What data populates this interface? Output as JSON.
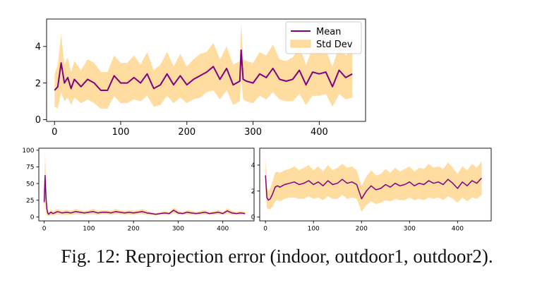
{
  "caption": "Fig. 12: Reprojection error (indoor, outdoor1, outdoor2).",
  "colors": {
    "mean": "#800080",
    "std": "#ffd080",
    "axis": "#000000"
  },
  "chart_data": [
    {
      "type": "line",
      "title": "",
      "xlabel": "",
      "ylabel": "",
      "xlim": [
        -12,
        470
      ],
      "ylim": [
        -0.1,
        5.5
      ],
      "xticks": [
        0,
        100,
        200,
        300,
        400
      ],
      "yticks": [
        0,
        2,
        4
      ],
      "legend": {
        "position": "top-right",
        "entries": [
          "Mean",
          "Std Dev"
        ]
      },
      "series": [
        {
          "name": "Mean",
          "x": [
            0,
            5,
            10,
            15,
            20,
            25,
            30,
            40,
            50,
            60,
            70,
            80,
            90,
            100,
            110,
            120,
            130,
            140,
            150,
            160,
            170,
            180,
            190,
            200,
            210,
            220,
            230,
            240,
            250,
            260,
            270,
            280,
            282,
            285,
            290,
            300,
            310,
            320,
            330,
            340,
            350,
            360,
            370,
            380,
            390,
            400,
            410,
            420,
            430,
            440,
            450
          ],
          "values": [
            1.6,
            1.8,
            3.1,
            2.0,
            2.3,
            1.7,
            2.2,
            1.8,
            2.2,
            2.0,
            1.6,
            1.6,
            2.4,
            2.0,
            2.0,
            2.3,
            2.0,
            2.5,
            1.7,
            1.9,
            2.5,
            1.9,
            2.4,
            1.9,
            2.2,
            2.4,
            2.6,
            2.9,
            2.2,
            2.8,
            1.9,
            2.1,
            3.8,
            2.2,
            2.1,
            2.0,
            2.5,
            2.3,
            2.8,
            2.2,
            2.1,
            2.2,
            2.7,
            1.9,
            2.6,
            2.5,
            2.6,
            1.8,
            2.7,
            2.3,
            2.5
          ]
        },
        {
          "name": "Std Dev",
          "x": [
            0,
            5,
            10,
            15,
            20,
            25,
            30,
            40,
            50,
            60,
            70,
            80,
            90,
            100,
            110,
            120,
            130,
            140,
            150,
            160,
            170,
            180,
            190,
            200,
            210,
            220,
            230,
            240,
            250,
            260,
            270,
            280,
            282,
            285,
            290,
            300,
            310,
            320,
            330,
            340,
            350,
            360,
            370,
            380,
            390,
            400,
            410,
            420,
            430,
            440,
            450
          ],
          "values": [
            0.9,
            1.2,
            1.6,
            1.0,
            1.1,
            0.9,
            1.0,
            0.9,
            1.1,
            1.1,
            1.0,
            1.0,
            1.1,
            1.1,
            1.1,
            1.2,
            1.0,
            1.2,
            1.0,
            1.1,
            1.2,
            1.0,
            1.2,
            1.0,
            1.1,
            1.2,
            1.1,
            1.3,
            1.1,
            1.2,
            1.1,
            1.1,
            1.5,
            1.1,
            1.1,
            1.1,
            1.2,
            1.2,
            1.3,
            1.1,
            1.1,
            1.2,
            1.3,
            1.1,
            1.3,
            1.2,
            1.2,
            1.1,
            1.3,
            1.2,
            1.3
          ]
        }
      ]
    },
    {
      "type": "line",
      "title": "",
      "xlabel": "",
      "ylabel": "",
      "xlim": [
        -12,
        470
      ],
      "ylim": [
        -6,
        103
      ],
      "xticks": [
        0,
        100,
        200,
        300,
        400
      ],
      "yticks": [
        0,
        25,
        50,
        75,
        100
      ],
      "series": [
        {
          "name": "Mean",
          "x": [
            0,
            2,
            4,
            6,
            8,
            10,
            15,
            20,
            30,
            40,
            50,
            60,
            70,
            80,
            90,
            100,
            110,
            120,
            130,
            140,
            150,
            160,
            170,
            180,
            190,
            200,
            210,
            220,
            230,
            240,
            250,
            260,
            270,
            280,
            290,
            300,
            310,
            320,
            330,
            340,
            350,
            360,
            370,
            380,
            390,
            400,
            410,
            420,
            430,
            440,
            450
          ],
          "values": [
            22,
            62,
            30,
            12,
            6,
            4,
            7,
            5,
            8,
            6,
            7,
            6,
            8,
            7,
            6,
            7,
            8,
            6,
            7,
            7,
            6,
            8,
            7,
            6,
            7,
            6,
            7,
            8,
            6,
            5,
            4,
            5,
            6,
            5,
            10,
            6,
            5,
            7,
            6,
            5,
            6,
            7,
            5,
            6,
            7,
            5,
            9,
            6,
            5,
            6,
            5
          ]
        },
        {
          "name": "Std Dev",
          "x": [
            0,
            2,
            4,
            6,
            8,
            10,
            15,
            20,
            30,
            40,
            50,
            60,
            70,
            80,
            90,
            100,
            110,
            120,
            130,
            140,
            150,
            160,
            170,
            180,
            190,
            200,
            210,
            220,
            230,
            240,
            250,
            260,
            270,
            280,
            290,
            300,
            310,
            320,
            330,
            340,
            350,
            360,
            370,
            380,
            390,
            400,
            410,
            420,
            430,
            440,
            450
          ],
          "values": [
            20,
            35,
            25,
            10,
            4,
            3,
            4,
            3,
            4,
            3,
            4,
            3,
            4,
            3,
            3,
            3,
            4,
            3,
            3,
            3,
            3,
            4,
            3,
            3,
            3,
            3,
            3,
            4,
            3,
            2,
            2,
            2,
            3,
            2,
            4,
            3,
            2,
            3,
            3,
            2,
            3,
            3,
            2,
            3,
            3,
            2,
            4,
            3,
            2,
            3,
            2
          ]
        }
      ]
    },
    {
      "type": "line",
      "title": "",
      "xlabel": "",
      "ylabel": "",
      "xlim": [
        -12,
        470
      ],
      "ylim": [
        -0.3,
        5.3
      ],
      "xticks": [
        0,
        100,
        200,
        300,
        400
      ],
      "yticks": [
        0,
        2,
        4
      ],
      "series": [
        {
          "name": "Mean",
          "x": [
            0,
            3,
            6,
            10,
            15,
            20,
            25,
            30,
            40,
            50,
            60,
            70,
            80,
            90,
            100,
            110,
            120,
            130,
            140,
            150,
            160,
            170,
            180,
            190,
            200,
            210,
            220,
            230,
            240,
            250,
            260,
            270,
            280,
            290,
            300,
            310,
            320,
            330,
            340,
            350,
            360,
            370,
            380,
            390,
            400,
            410,
            420,
            430,
            440,
            450
          ],
          "values": [
            3.2,
            1.5,
            1.3,
            1.4,
            1.8,
            2.3,
            2.4,
            2.3,
            2.5,
            2.6,
            2.7,
            2.5,
            2.6,
            2.8,
            2.5,
            2.7,
            2.4,
            2.8,
            2.5,
            2.6,
            2.9,
            2.6,
            2.7,
            2.5,
            1.4,
            2.0,
            2.4,
            2.1,
            2.2,
            2.5,
            2.3,
            2.6,
            2.4,
            2.5,
            2.7,
            2.4,
            2.6,
            2.5,
            2.8,
            2.6,
            2.7,
            2.5,
            2.9,
            2.6,
            2.2,
            2.7,
            2.4,
            2.8,
            2.6,
            3.0
          ]
        },
        {
          "name": "Std Dev",
          "x": [
            0,
            3,
            6,
            10,
            15,
            20,
            25,
            30,
            40,
            50,
            60,
            70,
            80,
            90,
            100,
            110,
            120,
            130,
            140,
            150,
            160,
            170,
            180,
            190,
            200,
            210,
            220,
            230,
            240,
            250,
            260,
            270,
            280,
            290,
            300,
            310,
            320,
            330,
            340,
            350,
            360,
            370,
            380,
            390,
            400,
            410,
            420,
            430,
            440,
            450
          ],
          "values": [
            1.3,
            0.8,
            0.7,
            0.8,
            1.0,
            1.1,
            1.1,
            1.1,
            1.1,
            1.1,
            1.2,
            1.1,
            1.2,
            1.2,
            1.1,
            1.2,
            1.1,
            1.2,
            1.1,
            1.2,
            1.2,
            1.2,
            1.2,
            1.1,
            1.0,
            1.1,
            1.2,
            1.1,
            1.1,
            1.2,
            1.1,
            1.2,
            1.1,
            1.2,
            1.2,
            1.1,
            1.2,
            1.2,
            1.3,
            1.2,
            1.2,
            1.2,
            1.3,
            1.2,
            1.1,
            1.2,
            1.2,
            1.3,
            1.2,
            1.3
          ]
        }
      ]
    }
  ]
}
